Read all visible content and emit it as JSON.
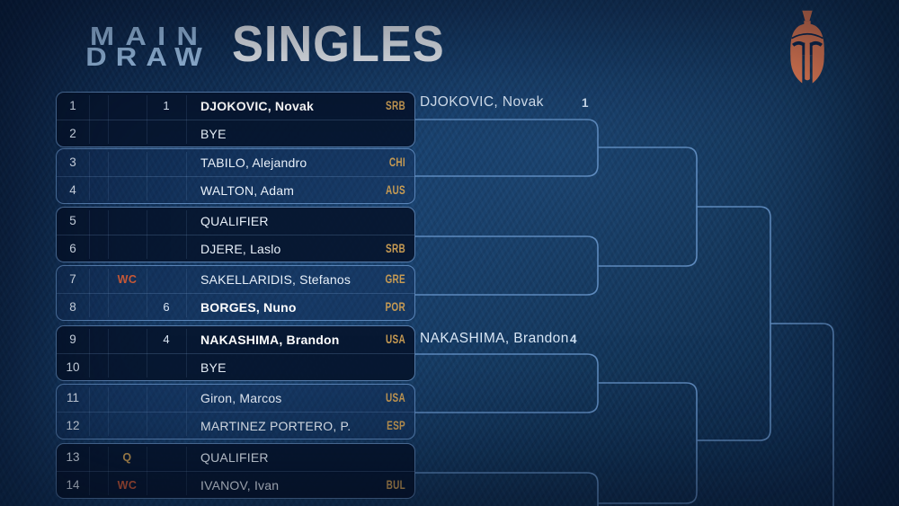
{
  "title": {
    "line1": "MAIN",
    "line2": "DRAW",
    "heading": "SINGLES"
  },
  "logo": {
    "icon": "spartan-helmet-icon",
    "color": "#ec7f55"
  },
  "colors": {
    "background": "#133661",
    "box_fill_dark": "#071c3a",
    "box_border": "#76a3da",
    "bracket_line": "#6d9bd1",
    "country_code": "#c79b53",
    "wildcard": "#cd5b38",
    "qualifier": "#c79b53",
    "title_light_blue": "#a2c7ec",
    "title_white": "#f4f8fd"
  },
  "draw": {
    "rows": [
      {
        "pos": "1",
        "entry": "",
        "seed": "1",
        "name": "DJOKOVIC, Novak",
        "country": "SRB"
      },
      {
        "pos": "2",
        "entry": "",
        "seed": "",
        "name": "BYE",
        "country": ""
      },
      {
        "pos": "3",
        "entry": "",
        "seed": "",
        "name": "TABILO, Alejandro",
        "country": "CHI"
      },
      {
        "pos": "4",
        "entry": "",
        "seed": "",
        "name": "WALTON, Adam",
        "country": "AUS"
      },
      {
        "pos": "5",
        "entry": "",
        "seed": "",
        "name": "QUALIFIER",
        "country": ""
      },
      {
        "pos": "6",
        "entry": "",
        "seed": "",
        "name": "DJERE, Laslo",
        "country": "SRB"
      },
      {
        "pos": "7",
        "entry": "WC",
        "seed": "",
        "name": "SAKELLARIDIS, Stefanos",
        "country": "GRE"
      },
      {
        "pos": "8",
        "entry": "",
        "seed": "6",
        "name": "BORGES, Nuno",
        "country": "POR"
      },
      {
        "pos": "9",
        "entry": "",
        "seed": "4",
        "name": "NAKASHIMA, Brandon",
        "country": "USA"
      },
      {
        "pos": "10",
        "entry": "",
        "seed": "",
        "name": "BYE",
        "country": ""
      },
      {
        "pos": "11",
        "entry": "",
        "seed": "",
        "name": "Giron, Marcos",
        "country": "USA"
      },
      {
        "pos": "12",
        "entry": "",
        "seed": "",
        "name": "MARTINEZ PORTERO, P.",
        "country": "ESP"
      },
      {
        "pos": "13",
        "entry": "Q",
        "seed": "",
        "name": "QUALIFIER",
        "country": ""
      },
      {
        "pos": "14",
        "entry": "WC",
        "seed": "",
        "name": "IVANOV, Ivan",
        "country": "BUL"
      }
    ],
    "advancers": [
      {
        "name": "DJOKOVIC, Novak",
        "seed": "1"
      },
      {
        "name": "NAKASHIMA, Brandon",
        "seed": "4"
      }
    ]
  }
}
